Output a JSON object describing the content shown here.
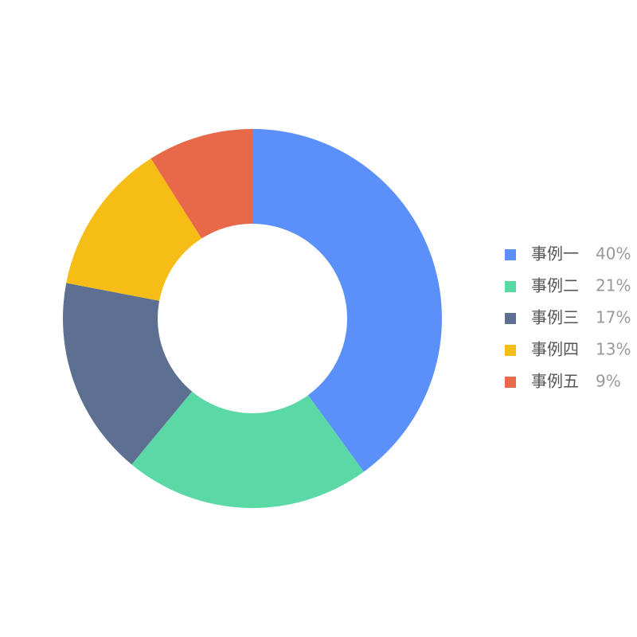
{
  "chart_data": {
    "type": "donut",
    "categories": [
      "事例一",
      "事例二",
      "事例三",
      "事例四",
      "事例五"
    ],
    "values": [
      40,
      21,
      17,
      13,
      9
    ],
    "value_labels": [
      "40%",
      "21%",
      "17%",
      "13%",
      "9%"
    ],
    "colors": [
      "#5b8ff9",
      "#5ad8a6",
      "#5d7092",
      "#f6bd16",
      "#e8684a"
    ],
    "legend": "right"
  }
}
